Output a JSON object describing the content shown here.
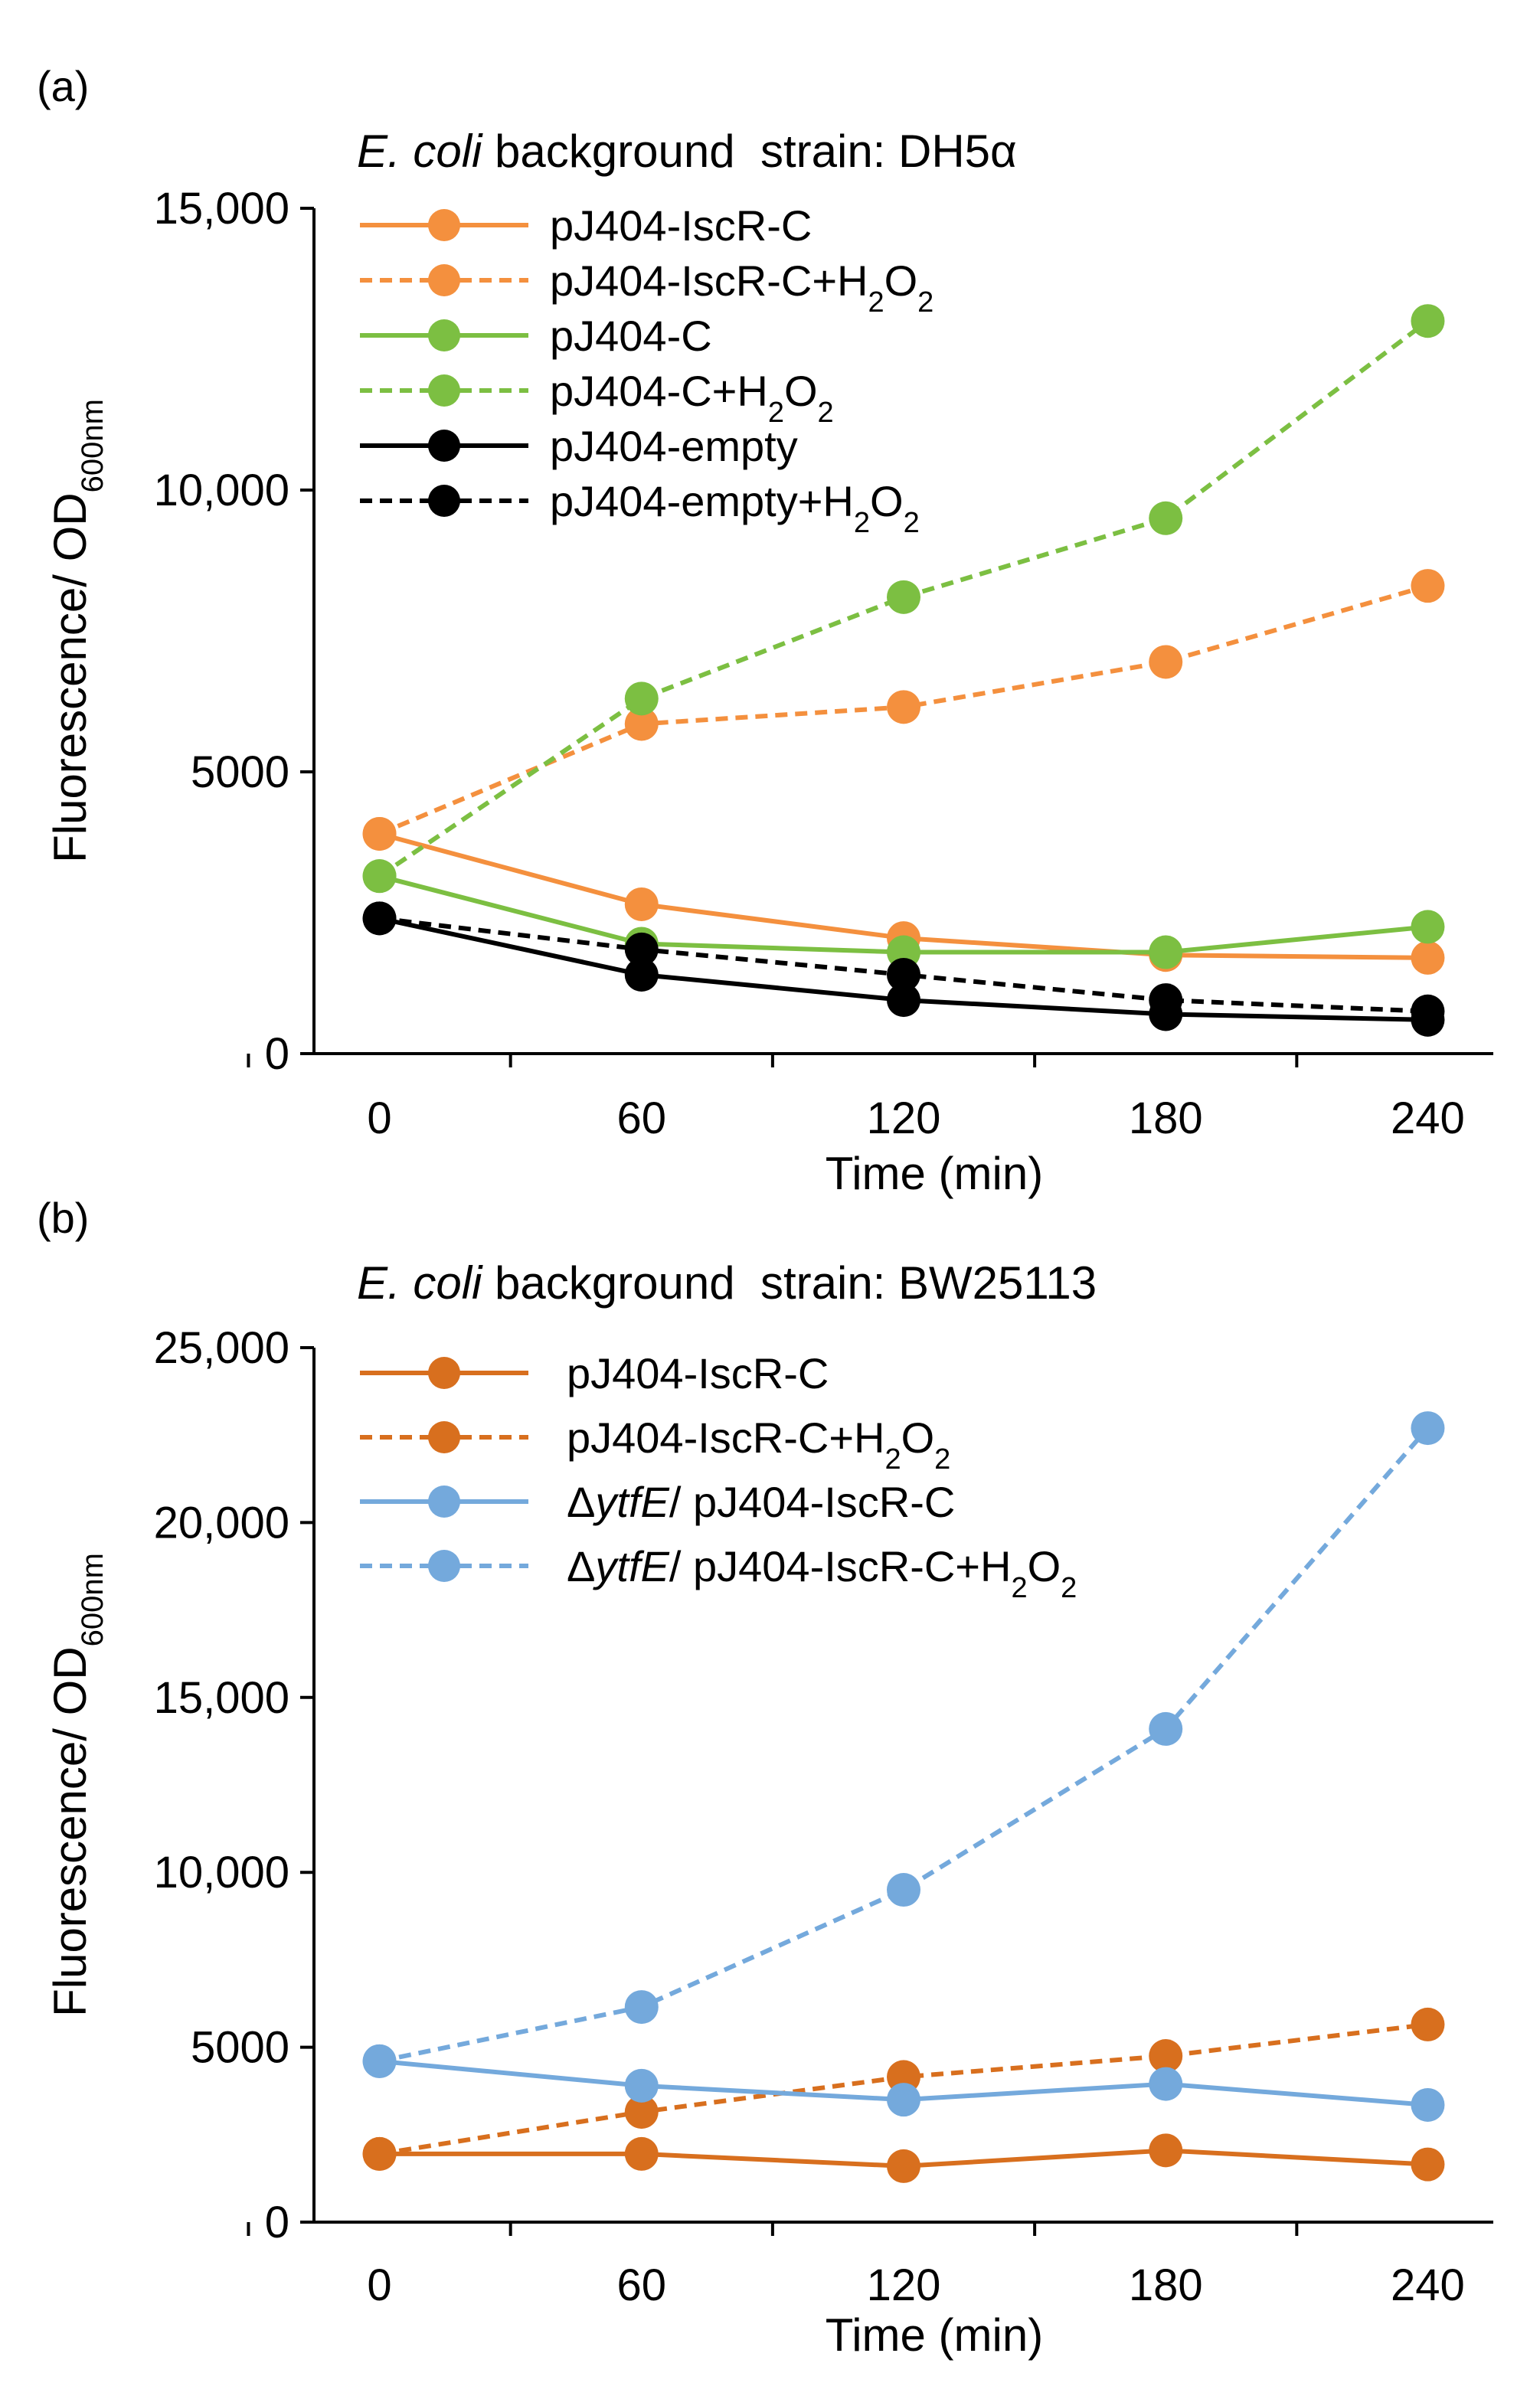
{
  "chart_data": [
    {
      "type": "line",
      "panel_label": "(a)",
      "title_italic": "E. coli",
      "title_rest": " background  strain: DH5α",
      "xlabel": "Time (min)",
      "ylabel_main": "Fluorescence/ OD",
      "ylabel_sub": "600nm",
      "x": [
        0,
        60,
        120,
        180,
        240
      ],
      "xlim": [
        -15,
        255
      ],
      "ylim": [
        0,
        15000
      ],
      "yticks": [
        0,
        5000,
        10000,
        15000
      ],
      "ytick_labels": [
        "0",
        "5000",
        "10,000",
        "15,000"
      ],
      "xtick_labels": [
        "0",
        "60",
        "120",
        "180",
        "240"
      ],
      "legend_position": "top-left",
      "series": [
        {
          "name": "pJ404-IscR-C",
          "label_parts": [
            {
              "t": "pJ404-IscR-C"
            }
          ],
          "color": "#F4903E",
          "style": "solid",
          "values": [
            3900,
            2650,
            2050,
            1750,
            1700
          ]
        },
        {
          "name": "pJ404-IscR-C+H2O2",
          "label_parts": [
            {
              "t": "pJ404-IscR-C+H"
            },
            {
              "t": "2",
              "sub": true
            },
            {
              "t": "O"
            },
            {
              "t": "2",
              "sub": true
            }
          ],
          "color": "#F4903E",
          "style": "dashed",
          "values": [
            3900,
            5850,
            6150,
            6950,
            8300
          ]
        },
        {
          "name": "pJ404-C",
          "label_parts": [
            {
              "t": "pJ404-C"
            }
          ],
          "color": "#7CBF42",
          "style": "solid",
          "values": [
            3150,
            1950,
            1800,
            1800,
            2250
          ]
        },
        {
          "name": "pJ404-C+H2O2",
          "label_parts": [
            {
              "t": "pJ404-C+H"
            },
            {
              "t": "2",
              "sub": true
            },
            {
              "t": "O"
            },
            {
              "t": "2",
              "sub": true
            }
          ],
          "color": "#7CBF42",
          "style": "dashed",
          "values": [
            3150,
            6300,
            8100,
            9500,
            13000
          ]
        },
        {
          "name": "pJ404-empty",
          "label_parts": [
            {
              "t": "pJ404-empty"
            }
          ],
          "color": "#000000",
          "style": "solid",
          "values": [
            2400,
            1400,
            950,
            700,
            600
          ]
        },
        {
          "name": "pJ404-empty+H2O2",
          "label_parts": [
            {
              "t": "pJ404-empty+H"
            },
            {
              "t": "2",
              "sub": true
            },
            {
              "t": "O"
            },
            {
              "t": "2",
              "sub": true
            }
          ],
          "color": "#000000",
          "style": "dashed",
          "values": [
            2400,
            1850,
            1400,
            950,
            750
          ]
        }
      ]
    },
    {
      "type": "line",
      "panel_label": "(b)",
      "title_italic": "E. coli",
      "title_rest": " background  strain: BW25113",
      "xlabel": "Time (min)",
      "ylabel_main": "Fluorescence/ OD",
      "ylabel_sub": "600nm",
      "x": [
        0,
        60,
        120,
        180,
        240
      ],
      "xlim": [
        -15,
        255
      ],
      "ylim": [
        0,
        25000
      ],
      "yticks": [
        0,
        5000,
        10000,
        15000,
        20000,
        25000
      ],
      "ytick_labels": [
        "0",
        "5000",
        "10,000",
        "15,000",
        "20,000",
        "25,000"
      ],
      "xtick_labels": [
        "0",
        "60",
        "120",
        "180",
        "240"
      ],
      "legend_position": "top-left",
      "series": [
        {
          "name": "pJ404-IscR-C",
          "label_parts": [
            {
              "t": "pJ404-IscR-C"
            }
          ],
          "color": "#D86F1E",
          "style": "solid",
          "values": [
            1950,
            1950,
            1600,
            2050,
            1650
          ]
        },
        {
          "name": "pJ404-IscR-C+H2O2",
          "label_parts": [
            {
              "t": "pJ404-IscR-C+H"
            },
            {
              "t": "2",
              "sub": true
            },
            {
              "t": "O"
            },
            {
              "t": "2",
              "sub": true
            }
          ],
          "color": "#D86F1E",
          "style": "dashed",
          "values": [
            1950,
            3150,
            4150,
            4750,
            5650
          ]
        },
        {
          "name": "ΔytfE/ pJ404-IscR-C",
          "label_parts": [
            {
              "t": "Δ"
            },
            {
              "t": "ytfE",
              "it": true
            },
            {
              "t": "/ pJ404-IscR-C"
            }
          ],
          "color": "#74A9DC",
          "style": "solid",
          "values": [
            4600,
            3900,
            3500,
            3950,
            3350
          ]
        },
        {
          "name": "ΔytfE/ pJ404-IscR-C+H2O2",
          "label_parts": [
            {
              "t": "Δ"
            },
            {
              "t": "ytfE",
              "it": true
            },
            {
              "t": "/ pJ404-IscR-C+H"
            },
            {
              "t": "2",
              "sub": true
            },
            {
              "t": "O"
            },
            {
              "t": "2",
              "sub": true
            }
          ],
          "color": "#74A9DC",
          "style": "dashed",
          "values": [
            4600,
            6150,
            9500,
            14100,
            22700
          ]
        }
      ]
    }
  ]
}
